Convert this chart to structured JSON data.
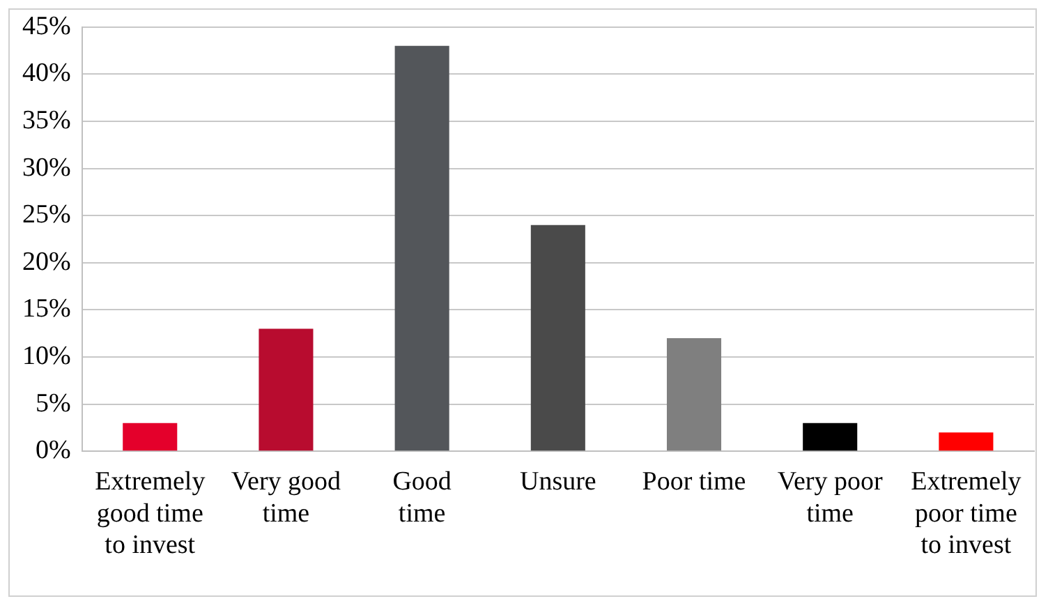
{
  "chart_data": {
    "type": "bar",
    "categories": [
      "Extremely good time to invest",
      "Very good time",
      "Good time",
      "Unsure",
      "Poor time",
      "Very poor time",
      "Extremely poor time to invest"
    ],
    "values": [
      3,
      13,
      43,
      24,
      12,
      3,
      2
    ],
    "colors": [
      "#e4002b",
      "#b80c2f",
      "#53565a",
      "#4a4a4a",
      "#7f7f7f",
      "#000000",
      "#ff0000"
    ],
    "ylim": [
      0,
      45
    ],
    "yticks": [
      {
        "value": 0,
        "label": "0%"
      },
      {
        "value": 5,
        "label": "5%"
      },
      {
        "value": 10,
        "label": "10%"
      },
      {
        "value": 15,
        "label": "15%"
      },
      {
        "value": 20,
        "label": "20%"
      },
      {
        "value": 25,
        "label": "25%"
      },
      {
        "value": 30,
        "label": "30%"
      },
      {
        "value": 35,
        "label": "35%"
      },
      {
        "value": 40,
        "label": "40%"
      },
      {
        "value": 45,
        "label": "45%"
      }
    ],
    "grid": "y",
    "legend": false
  }
}
